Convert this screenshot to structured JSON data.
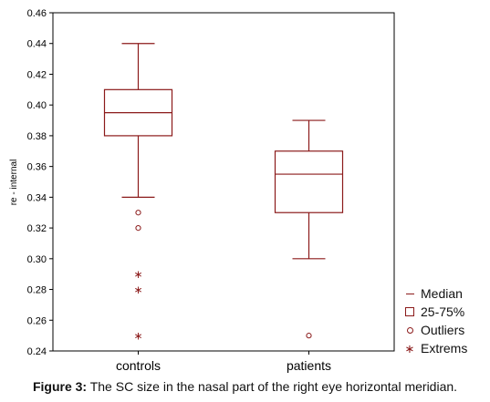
{
  "chart_data": {
    "type": "box",
    "title": "",
    "xlabel": "",
    "ylabel": "re - internal",
    "ylim": [
      0.24,
      0.46
    ],
    "y_ticks": [
      "0.24",
      "0.26",
      "0.28",
      "0.30",
      "0.32",
      "0.34",
      "0.36",
      "0.38",
      "0.40",
      "0.42",
      "0.44",
      "0.46"
    ],
    "categories": [
      "controls",
      "patients"
    ],
    "boxes": [
      {
        "category": "controls",
        "median": 0.395,
        "q1": 0.38,
        "q3": 0.41,
        "whisker_low": 0.34,
        "whisker_high": 0.44,
        "outliers": [
          0.33,
          0.32
        ],
        "extremes": [
          0.29,
          0.28,
          0.25
        ]
      },
      {
        "category": "patients",
        "median": 0.355,
        "q1": 0.33,
        "q3": 0.37,
        "whisker_low": 0.3,
        "whisker_high": 0.39,
        "outliers": [
          0.25
        ],
        "extremes": []
      }
    ],
    "legend": {
      "position": "bottom-right, outside plot",
      "items": [
        {
          "symbol": "median",
          "label": "Median"
        },
        {
          "symbol": "box",
          "label": "25-75%"
        },
        {
          "symbol": "outlier",
          "label": "Outliers"
        },
        {
          "symbol": "extreme",
          "label": "Extrems"
        }
      ]
    },
    "grid": false,
    "colors": {
      "series": "#8b1a1a",
      "axis": "#000000"
    }
  },
  "caption": {
    "label": "Figure 3:",
    "text": "The SC size in the nasal part of the right eye horizontal meridian."
  }
}
